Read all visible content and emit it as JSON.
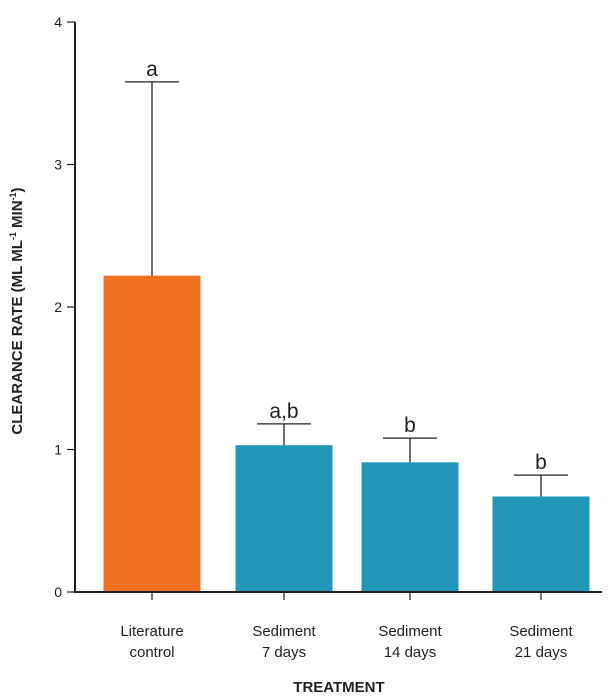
{
  "chart_data": {
    "type": "bar",
    "categories": [
      [
        "Literature",
        "control"
      ],
      [
        "Sediment",
        "7 days"
      ],
      [
        "Sediment",
        "14 days"
      ],
      [
        "Sediment",
        "21 days"
      ]
    ],
    "values": [
      2.22,
      1.03,
      0.91,
      0.67
    ],
    "error_upper": [
      3.58,
      1.18,
      1.08,
      0.82
    ],
    "significance_labels": [
      "a",
      "a,b",
      "b",
      "b"
    ],
    "bar_colors": [
      "#f07122",
      "#2196b8",
      "#2196b8",
      "#2196b8"
    ],
    "title": "",
    "xlabel": "TREATMENT",
    "ylabel_main": "CLEARANCE RATE (ML ML",
    "ylabel_sup1": "-1",
    "ylabel_mid": " MIN",
    "ylabel_sup2": "-1",
    "ylabel_end": ")",
    "ylim": [
      0,
      4
    ],
    "yticks": [
      "0",
      "1",
      "2",
      "3",
      "4"
    ],
    "grid": false,
    "legend": "none"
  }
}
